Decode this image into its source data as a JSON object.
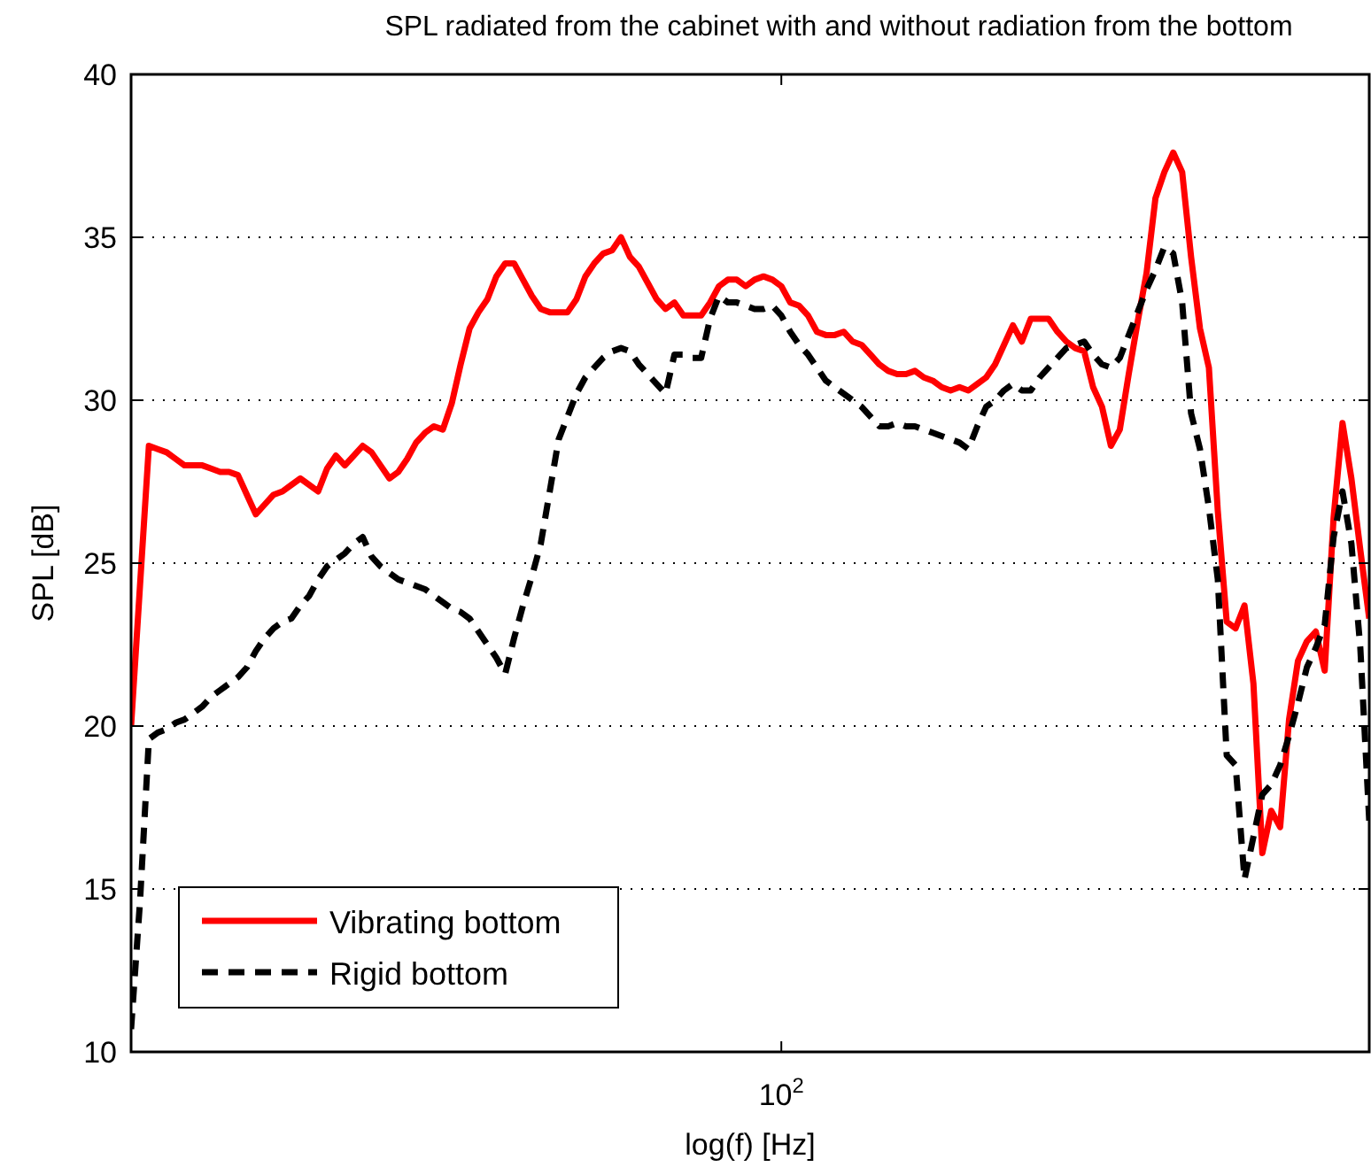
{
  "chart_data": {
    "type": "line",
    "title": "SPL radiated from the cabinet with and without radiation from the bottom",
    "xlabel": "log(f) [Hz]",
    "ylabel": "SPL [dB]",
    "categories": [
      null,
      null,
      null,
      null,
      null,
      null,
      null,
      null,
      null,
      null,
      null,
      null,
      null,
      null,
      null,
      null,
      null,
      null,
      null,
      null,
      null,
      null,
      null,
      null,
      null,
      null,
      null,
      null,
      null,
      null,
      null,
      null,
      null,
      null,
      null,
      null,
      null,
      null,
      null,
      null,
      null,
      null,
      null,
      null,
      null,
      null,
      null,
      null,
      null,
      null,
      null,
      null,
      null,
      null,
      null,
      null,
      null,
      null,
      null,
      null,
      null,
      null,
      null,
      null,
      null,
      null,
      null,
      null,
      null,
      null,
      null,
      null,
      null,
      "10$^{2}$",
      null,
      null,
      null,
      null,
      null,
      null,
      null,
      null,
      null,
      null,
      null,
      null,
      null,
      null,
      null,
      null,
      null,
      null,
      null,
      null,
      null,
      null,
      null,
      null,
      null,
      null,
      null,
      null,
      null,
      null,
      null,
      null,
      null,
      null,
      null,
      null,
      null,
      null,
      null,
      null,
      null,
      null,
      null,
      null,
      null,
      null,
      null,
      null,
      null,
      null,
      null,
      null,
      null,
      null,
      null,
      null,
      null,
      null,
      null,
      null,
      null,
      null,
      null,
      null,
      null,
      null
    ],
    "ylim": [
      10,
      40
    ],
    "yticks": [
      10,
      15,
      20,
      25,
      30,
      35,
      40
    ],
    "grid": "y",
    "legend": "bottom left",
    "series": [
      {
        "name": "Vibrating bottom",
        "color": "#ff0000",
        "line_style": "solid",
        "values": [
          20.0,
          24.3,
          28.6,
          28.5,
          28.4,
          28.2,
          28.0,
          28.0,
          28.0,
          27.9,
          27.8,
          27.8,
          27.7,
          27.1,
          26.5,
          26.8,
          27.1,
          27.2,
          27.4,
          27.6,
          27.4,
          27.2,
          27.9,
          28.3,
          28.0,
          28.3,
          28.6,
          28.4,
          28.0,
          27.6,
          27.8,
          28.2,
          28.7,
          29.0,
          29.2,
          29.1,
          29.9,
          31.1,
          32.2,
          32.7,
          33.1,
          33.8,
          34.2,
          34.2,
          33.7,
          33.2,
          32.8,
          32.7,
          32.7,
          32.7,
          33.1,
          33.8,
          34.2,
          34.5,
          34.6,
          35.0,
          34.4,
          34.1,
          33.6,
          33.1,
          32.8,
          33.0,
          32.6,
          32.6,
          32.6,
          33.0,
          33.5,
          33.7,
          33.7,
          33.5,
          33.7,
          33.8,
          33.7,
          33.5,
          33.0,
          32.9,
          32.6,
          32.1,
          32.0,
          32.0,
          32.1,
          31.8,
          31.7,
          31.4,
          31.1,
          30.9,
          30.8,
          30.8,
          30.9,
          30.7,
          30.6,
          30.4,
          30.3,
          30.4,
          30.3,
          30.5,
          30.7,
          31.1,
          31.7,
          32.3,
          31.8,
          32.5,
          32.5,
          32.5,
          32.1,
          31.8,
          31.6,
          31.5,
          30.4,
          29.8,
          28.6,
          29.1,
          30.8,
          32.4,
          33.9,
          36.2,
          37.0,
          37.6,
          37.0,
          34.4,
          32.2,
          31.0,
          26.6,
          23.2,
          23.0,
          23.7,
          21.3,
          16.1,
          17.4,
          16.9,
          20.2,
          22.0,
          22.6,
          22.9,
          21.7,
          26.4,
          29.3,
          27.6,
          25.4,
          23.3
        ]
      },
      {
        "name": "Rigid bottom",
        "color": "#000000",
        "line_style": "dashed",
        "values": [
          10.7,
          14.6,
          19.6,
          19.8,
          19.9,
          20.1,
          20.2,
          20.4,
          20.6,
          20.9,
          21.1,
          21.3,
          21.5,
          21.8,
          22.3,
          22.7,
          23.0,
          23.2,
          23.3,
          23.7,
          24.0,
          24.5,
          24.9,
          25.1,
          25.3,
          25.6,
          25.8,
          25.2,
          24.9,
          24.7,
          24.5,
          24.4,
          24.3,
          24.2,
          24.0,
          23.8,
          23.6,
          23.5,
          23.3,
          22.9,
          22.5,
          22.1,
          21.6,
          22.7,
          23.7,
          24.6,
          25.6,
          27.2,
          28.8,
          29.5,
          30.2,
          30.7,
          31.0,
          31.3,
          31.5,
          31.6,
          31.5,
          31.1,
          30.8,
          30.5,
          30.2,
          31.4,
          31.4,
          31.3,
          31.3,
          32.5,
          33.2,
          33.0,
          33.0,
          32.9,
          32.8,
          32.8,
          32.9,
          32.6,
          32.1,
          31.7,
          31.4,
          31.0,
          30.6,
          30.4,
          30.2,
          30.0,
          29.8,
          29.5,
          29.2,
          29.2,
          29.3,
          29.2,
          29.2,
          29.1,
          29.0,
          28.9,
          28.8,
          28.7,
          28.5,
          29.2,
          29.8,
          30.0,
          30.3,
          30.5,
          30.3,
          30.3,
          30.7,
          31.0,
          31.3,
          31.6,
          31.7,
          31.8,
          31.4,
          31.1,
          31.0,
          31.3,
          32.0,
          32.7,
          33.4,
          34.0,
          34.7,
          34.5,
          33.0,
          29.6,
          28.5,
          26.7,
          24.5,
          19.1,
          18.8,
          15.3,
          16.6,
          17.9,
          18.2,
          18.8,
          19.7,
          20.7,
          21.8,
          22.4,
          23.1,
          25.8,
          27.2,
          25.6,
          22.4,
          17.1
        ]
      }
    ]
  }
}
